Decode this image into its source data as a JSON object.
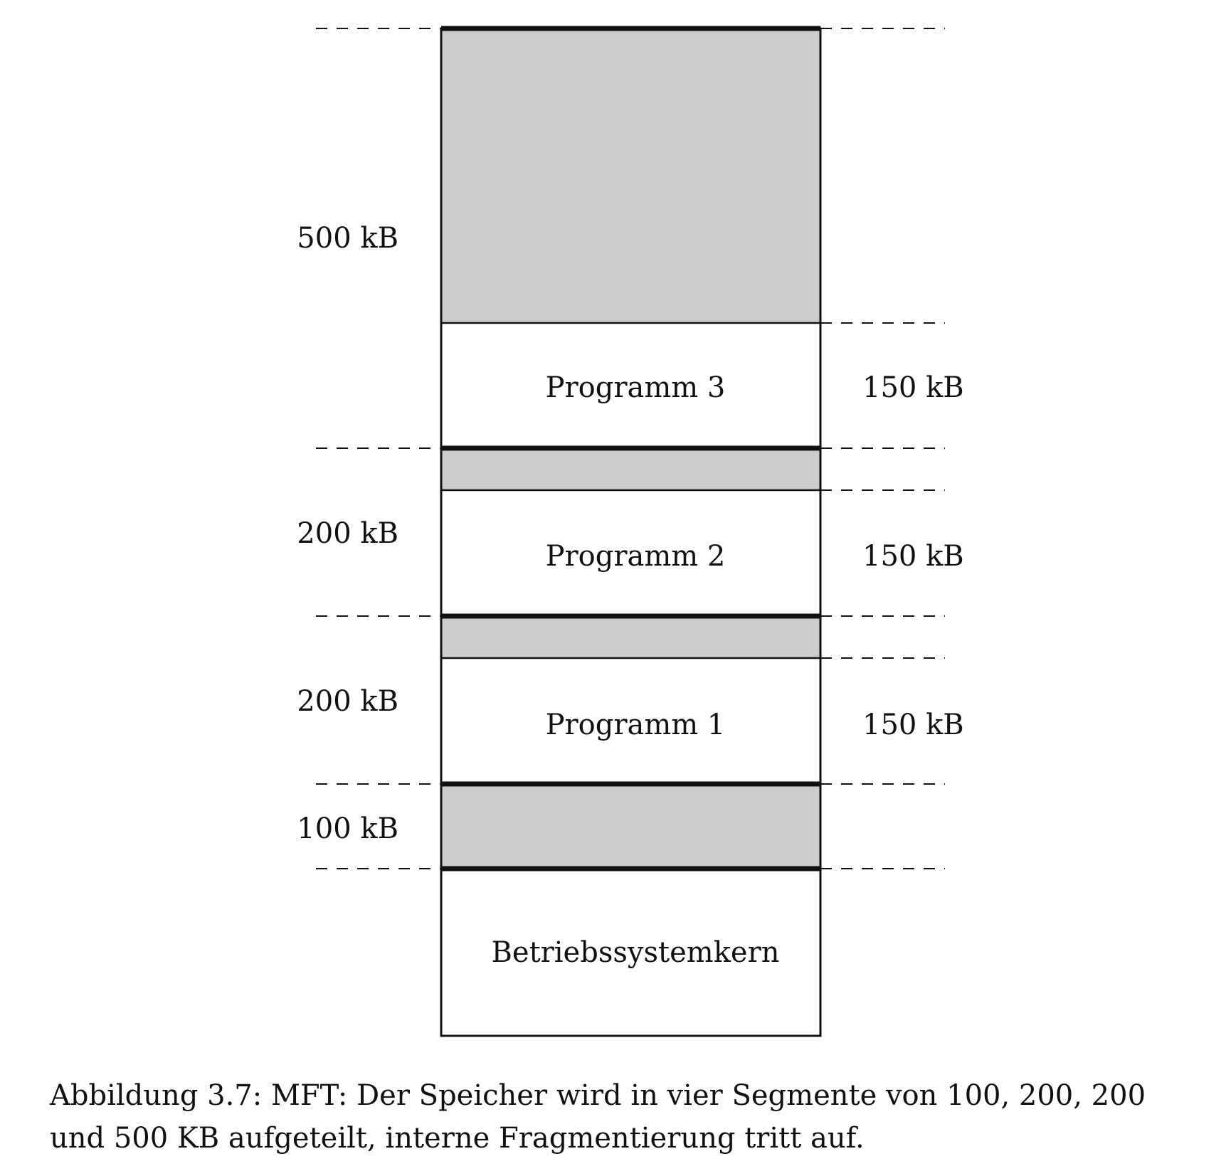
{
  "memory_layout": {
    "os_kernel_label": "Betriebssystemkern",
    "partitions": [
      {
        "size_label": "100 kB",
        "program_label": "",
        "program_size_label": ""
      },
      {
        "size_label": "200 kB",
        "program_label": "Programm 1",
        "program_size_label": "150 kB"
      },
      {
        "size_label": "200 kB",
        "program_label": "Programm 2",
        "program_size_label": "150 kB"
      },
      {
        "size_label": "500 kB",
        "program_label": "Programm 3",
        "program_size_label": "150 kB"
      }
    ],
    "colors": {
      "free_space": "#cccccc",
      "occupied": "#ffffff",
      "stroke": "#111111"
    }
  },
  "caption": {
    "line1": "Abbildung 3.7: MFT: Der Speicher wird in vier Segmente von 100, 200, 200",
    "line2": "und 500 KB aufgeteilt, interne Fragmentierung tritt auf."
  }
}
